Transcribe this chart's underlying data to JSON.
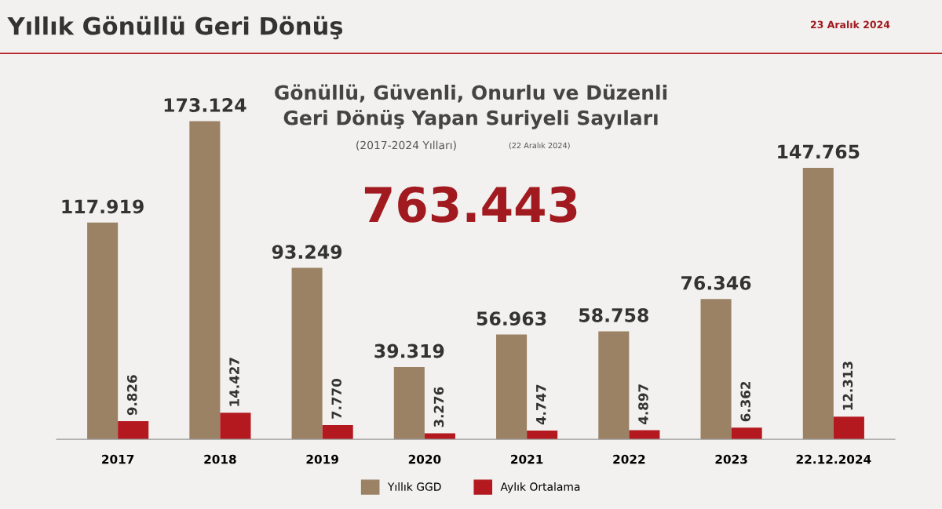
{
  "chart_data": {
    "type": "bar",
    "title": "Yıllık Gönüllü Geri Dönüş",
    "subtitle": "Gönüllü, Güvenli, Onurlu ve Düzenli\nGeri Dönüş Yapan Suriyeli Sayıları",
    "annotations": [
      "(2017-2024 Yılları)",
      "(22 Aralık 2024)",
      "763.443",
      "23 Aralık 2024"
    ],
    "categories": [
      "2017",
      "2018",
      "2019",
      "2020",
      "2021",
      "2022",
      "2023",
      "22.12.2024"
    ],
    "series": [
      {
        "name": "Yıllık GGD",
        "color": "#9c8265",
        "values": [
          117919,
          173124,
          93249,
          39319,
          56963,
          58758,
          76346,
          147765
        ],
        "value_labels": [
          "117.919",
          "173.124",
          "93.249",
          "39.319",
          "56.963",
          "58.758",
          "76.346",
          "147.765"
        ]
      },
      {
        "name": "Aylık Ortalama",
        "color": "#b3191f",
        "values": [
          9826,
          14427,
          7770,
          3276,
          4747,
          4897,
          6362,
          12313
        ],
        "value_labels": [
          "9.826",
          "14.427",
          "7.770",
          "3.276",
          "4.747",
          "4.897",
          "6.362",
          "12.313"
        ]
      }
    ],
    "legend": "bottom",
    "grid": false
  }
}
